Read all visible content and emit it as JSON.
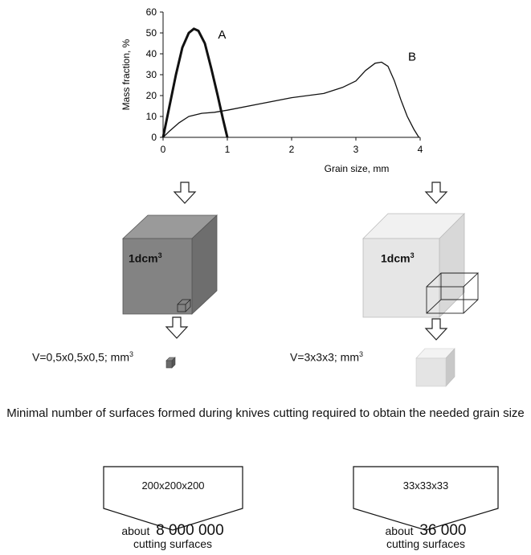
{
  "chart_data": {
    "type": "line",
    "xlabel": "Grain size, mm",
    "ylabel": "Mass fraction, %",
    "xlim": [
      0,
      4
    ],
    "ylim": [
      0,
      60
    ],
    "x_ticks": [
      "0",
      "1",
      "2",
      "3",
      "4"
    ],
    "y_ticks": [
      "0",
      "10",
      "20",
      "30",
      "40",
      "50",
      "60"
    ],
    "grid": false,
    "series": [
      {
        "name": "A",
        "x": [
          0,
          0.1,
          0.2,
          0.3,
          0.4,
          0.48,
          0.55,
          0.65,
          0.75,
          0.85,
          0.93,
          1.0
        ],
        "y": [
          0,
          15,
          30,
          43,
          50,
          52,
          51,
          45,
          33,
          20,
          9,
          0
        ]
      },
      {
        "name": "B",
        "x": [
          0,
          0.1,
          0.25,
          0.4,
          0.6,
          0.8,
          1.0,
          1.5,
          2.0,
          2.5,
          2.8,
          3.0,
          3.15,
          3.3,
          3.4,
          3.5,
          3.6,
          3.7,
          3.8,
          3.9,
          3.98
        ],
        "y": [
          0,
          3,
          7,
          10,
          11.5,
          12,
          13,
          16,
          19,
          21,
          24,
          27,
          32,
          35.5,
          36,
          34,
          27,
          18,
          10,
          4,
          0
        ]
      }
    ]
  },
  "left": {
    "cube_label": "1dcm",
    "cube_label_sup": "3",
    "volume_text": "V=0,5x0,5x0,5; mm",
    "volume_sup": "3",
    "box_label": "200x200x200",
    "about_word": "about",
    "about_number": "8 000 000",
    "surfaces": "cutting surfaces",
    "color": "#777777"
  },
  "right": {
    "cube_label": "1dcm",
    "cube_label_sup": "3",
    "volume_text": "V=3x3x3; mm",
    "volume_sup": "3",
    "box_label": "33x33x33",
    "about_word": "about",
    "about_number": "36 000",
    "surfaces": "cutting surfaces",
    "color": "#e4e4e4"
  },
  "caption": "Minimal number of surfaces formed during knives cutting required to obtain the needed grain size"
}
